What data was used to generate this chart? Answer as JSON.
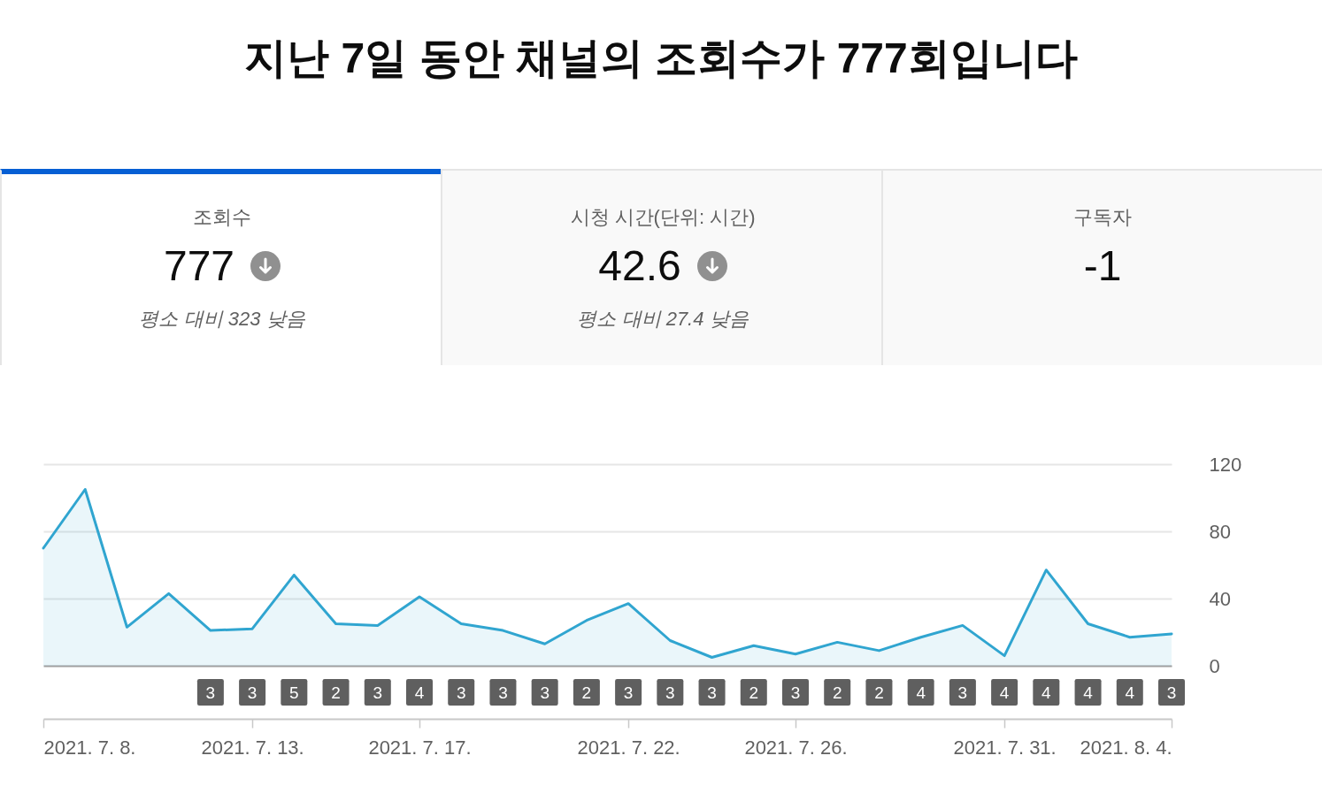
{
  "chart_data": [
    {
      "type": "other",
      "title": "지난 7일 동안 채널의 조회수가 777회입니다",
      "annotations": [
        "조회수",
        "777",
        "평소 대비 323 낮음"
      ]
    },
    {
      "type": "other",
      "annotations": [
        "시청 시간(단위: 시간)",
        "42.6",
        "평소 대비 27.4 낮음"
      ]
    },
    {
      "type": "other",
      "annotations": [
        "구독자",
        "-1"
      ]
    },
    {
      "type": "area",
      "x": [
        "2021-07-08",
        "2021-07-09",
        "2021-07-10",
        "2021-07-11",
        "2021-07-12",
        "2021-07-13",
        "2021-07-14",
        "2021-07-15",
        "2021-07-16",
        "2021-07-17",
        "2021-07-18",
        "2021-07-19",
        "2021-07-20",
        "2021-07-21",
        "2021-07-22",
        "2021-07-23",
        "2021-07-24",
        "2021-07-25",
        "2021-07-26",
        "2021-07-27",
        "2021-07-28",
        "2021-07-29",
        "2021-07-30",
        "2021-07-31",
        "2021-08-01",
        "2021-08-02",
        "2021-08-03",
        "2021-08-04"
      ],
      "values": [
        70,
        105,
        23,
        43,
        21,
        22,
        54,
        25,
        24,
        41,
        25,
        21,
        13,
        27,
        37,
        15,
        5,
        12,
        7,
        14,
        9,
        17,
        24,
        6,
        57,
        25,
        17,
        19
      ],
      "color": "#30a5d0",
      "xlim": [
        "2021-07-08",
        "2021-08-04"
      ],
      "xticks": [
        {
          "value": "2021-07-08",
          "label": "2021. 7. 8."
        },
        {
          "value": "2021-07-13",
          "label": "2021. 7. 13."
        },
        {
          "value": "2021-07-17",
          "label": "2021. 7. 17."
        },
        {
          "value": "2021-07-22",
          "label": "2021. 7. 22."
        },
        {
          "value": "2021-07-26",
          "label": "2021. 7. 26."
        },
        {
          "value": "2021-07-31",
          "label": "2021. 7. 31."
        },
        {
          "value": "2021-08-04",
          "label": "2021. 8. 4."
        }
      ],
      "ylim": [
        0,
        120
      ],
      "yticks": [
        0,
        40,
        80,
        120
      ],
      "grid": "y",
      "annotations": [
        "3",
        "3",
        "5",
        "2",
        "3",
        "4",
        "3",
        "3",
        "3",
        "2",
        "3",
        "3",
        "3",
        "2",
        "3",
        "2",
        "2",
        "4",
        "3",
        "4",
        "4",
        "4",
        "4",
        "3"
      ]
    }
  ]
}
